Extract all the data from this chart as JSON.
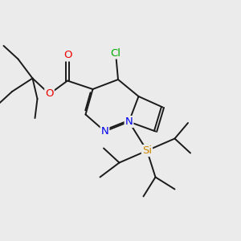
{
  "bg_color": "#ebebeb",
  "bond_color": "#1a1a1a",
  "atom_colors": {
    "N": "#0000ee",
    "O": "#ee0000",
    "Cl": "#00aa00",
    "Si": "#cc8800",
    "C": "#1a1a1a"
  },
  "font_size": 8.5,
  "fig_size": [
    3.0,
    3.0
  ],
  "dpi": 100,
  "lw": 1.4,
  "dbo": 0.055
}
